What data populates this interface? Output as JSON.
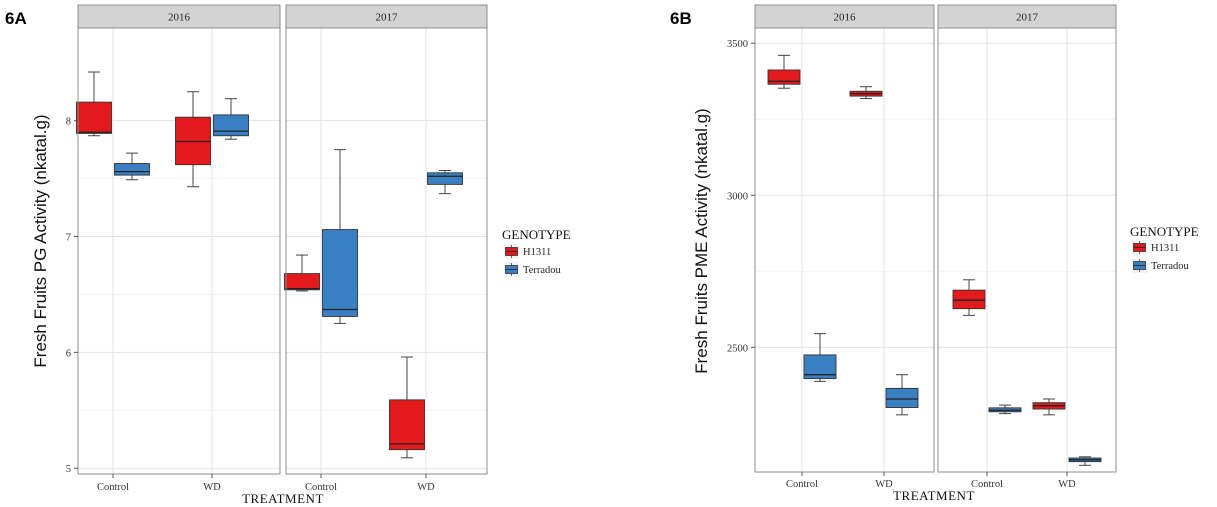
{
  "chart_data": [
    {
      "panel_label": "6A",
      "type": "box",
      "ylabel": "Fresh Fruits PG Activity (nkatal.g)",
      "xlabel": "TREATMENT",
      "facet_label": "",
      "facets": [
        "2016",
        "2017"
      ],
      "categories": [
        "Control",
        "WD"
      ],
      "ylim": [
        4.95,
        8.8
      ],
      "yticks": [
        5,
        6,
        7,
        8
      ],
      "grid": true,
      "legend": {
        "title": "GENOTYPE",
        "position": "right"
      },
      "series": [
        {
          "name": "H1311",
          "color": "#e31a1c",
          "boxes": [
            {
              "facet": "2016",
              "category": "Control",
              "min": 7.87,
              "q1": 7.89,
              "median": 7.9,
              "q3": 8.16,
              "max": 8.42
            },
            {
              "facet": "2016",
              "category": "WD",
              "min": 7.43,
              "q1": 7.62,
              "median": 7.82,
              "q3": 8.03,
              "max": 8.25
            },
            {
              "facet": "2017",
              "category": "Control",
              "min": 6.53,
              "q1": 6.54,
              "median": 6.55,
              "q3": 6.68,
              "max": 6.84
            },
            {
              "facet": "2017",
              "category": "WD",
              "min": 5.09,
              "q1": 5.16,
              "median": 5.21,
              "q3": 5.59,
              "max": 5.96
            }
          ]
        },
        {
          "name": "Terradou",
          "color": "#3a7fc1",
          "boxes": [
            {
              "facet": "2016",
              "category": "Control",
              "min": 7.49,
              "q1": 7.53,
              "median": 7.56,
              "q3": 7.63,
              "max": 7.72
            },
            {
              "facet": "2016",
              "category": "WD",
              "min": 7.84,
              "q1": 7.87,
              "median": 7.91,
              "q3": 8.05,
              "max": 8.19
            },
            {
              "facet": "2017",
              "category": "Control",
              "min": 6.25,
              "q1": 6.31,
              "median": 6.37,
              "q3": 7.06,
              "max": 7.75
            },
            {
              "facet": "2017",
              "category": "WD",
              "min": 7.37,
              "q1": 7.45,
              "median": 7.52,
              "q3": 7.55,
              "max": 7.57
            }
          ]
        }
      ]
    },
    {
      "panel_label": "6B",
      "type": "box",
      "ylabel": "Fresh Fruits PME Activity (nkatal.g)",
      "xlabel": "TREATMENT",
      "facet_label": "",
      "facets": [
        "2016",
        "2017"
      ],
      "categories": [
        "Control",
        "WD"
      ],
      "ylim": [
        2090,
        3550
      ],
      "yticks": [
        2500,
        3000,
        3500
      ],
      "grid": true,
      "legend": {
        "title": "GENOTYPE",
        "position": "right"
      },
      "series": [
        {
          "name": "H1311",
          "color": "#e31a1c",
          "boxes": [
            {
              "facet": "2016",
              "category": "Control",
              "min": 3352,
              "q1": 3365,
              "median": 3375,
              "q3": 3412,
              "max": 3460
            },
            {
              "facet": "2016",
              "category": "WD",
              "min": 3318,
              "q1": 3326,
              "median": 3334,
              "q3": 3342,
              "max": 3357
            },
            {
              "facet": "2017",
              "category": "Control",
              "min": 2605,
              "q1": 2627,
              "median": 2655,
              "q3": 2688,
              "max": 2722
            },
            {
              "facet": "2017",
              "category": "WD",
              "min": 2278,
              "q1": 2297,
              "median": 2308,
              "q3": 2318,
              "max": 2330
            }
          ]
        },
        {
          "name": "Terradou",
          "color": "#3a7fc1",
          "boxes": [
            {
              "facet": "2016",
              "category": "Control",
              "min": 2388,
              "q1": 2397,
              "median": 2410,
              "q3": 2475,
              "max": 2545
            },
            {
              "facet": "2016",
              "category": "WD",
              "min": 2278,
              "q1": 2302,
              "median": 2330,
              "q3": 2365,
              "max": 2410
            },
            {
              "facet": "2017",
              "category": "Control",
              "min": 2282,
              "q1": 2288,
              "median": 2293,
              "q3": 2301,
              "max": 2310
            },
            {
              "facet": "2017",
              "category": "WD",
              "min": 2112,
              "q1": 2124,
              "median": 2130,
              "q3": 2136,
              "max": 2140
            }
          ]
        }
      ]
    }
  ]
}
